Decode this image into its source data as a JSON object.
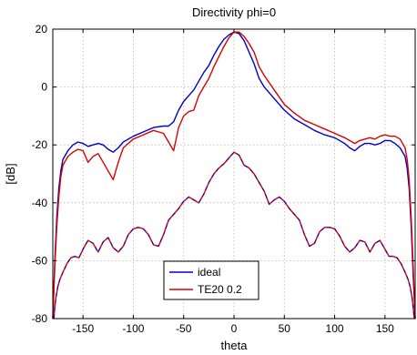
{
  "chart_data": {
    "type": "line",
    "title": "Directivity phi=0",
    "xlabel": "theta",
    "ylabel": "[dB]",
    "xlim": [
      -180,
      180
    ],
    "ylim": [
      -80,
      20
    ],
    "xticks": [
      -150,
      -100,
      -50,
      0,
      50,
      100,
      150
    ],
    "yticks": [
      -80,
      -60,
      -40,
      -20,
      0,
      20
    ],
    "grid": true,
    "legend": {
      "position": "bottom-center",
      "entries": [
        "ideal",
        "TE20 0.2"
      ]
    },
    "series": [
      {
        "name": "ideal",
        "color": "#0000cc",
        "style": "solid",
        "x": [
          -180,
          -178,
          -176,
          -174,
          -172,
          -170,
          -165,
          -160,
          -155,
          -150,
          -145,
          -140,
          -135,
          -130,
          -125,
          -120,
          -115,
          -110,
          -100,
          -90,
          -80,
          -70,
          -65,
          -60,
          -55,
          -50,
          -45,
          -40,
          -35,
          -30,
          -25,
          -20,
          -15,
          -10,
          -5,
          0,
          5,
          10,
          15,
          20,
          25,
          30,
          40,
          50,
          60,
          70,
          80,
          90,
          100,
          110,
          115,
          120,
          125,
          130,
          135,
          140,
          145,
          150,
          155,
          160,
          165,
          170,
          172,
          174,
          176,
          178,
          180
        ],
        "y": [
          -80,
          -60,
          -45,
          -35,
          -29,
          -25,
          -22,
          -20,
          -19,
          -19.5,
          -20.5,
          -20,
          -19.5,
          -20,
          -21.5,
          -22.5,
          -21,
          -19,
          -17,
          -15.5,
          -14,
          -13.5,
          -13.5,
          -12,
          -8,
          -5,
          -3,
          -1,
          2,
          5,
          7.5,
          11,
          14,
          16.5,
          18,
          19,
          18.5,
          16,
          12,
          8,
          3,
          0,
          -4,
          -8,
          -11,
          -13,
          -15,
          -16.5,
          -17.5,
          -19.5,
          -21,
          -22,
          -20.5,
          -19.5,
          -19.5,
          -20,
          -19.5,
          -18.5,
          -18.5,
          -19.5,
          -21,
          -24,
          -28,
          -35,
          -48,
          -65,
          -80
        ]
      },
      {
        "name": "TE20 0.2",
        "color": "#dd0000",
        "style": "solid",
        "x": [
          -180,
          -178,
          -176,
          -174,
          -172,
          -170,
          -165,
          -160,
          -155,
          -150,
          -145,
          -140,
          -135,
          -130,
          -125,
          -120,
          -115,
          -110,
          -100,
          -90,
          -80,
          -70,
          -65,
          -60,
          -55,
          -50,
          -45,
          -40,
          -35,
          -30,
          -25,
          -20,
          -15,
          -10,
          -5,
          0,
          5,
          10,
          15,
          20,
          25,
          30,
          40,
          50,
          60,
          70,
          80,
          90,
          100,
          110,
          115,
          120,
          125,
          130,
          135,
          140,
          145,
          150,
          155,
          160,
          165,
          170,
          172,
          174,
          176,
          178,
          180
        ],
        "y": [
          -80,
          -62,
          -48,
          -38,
          -31,
          -27,
          -24,
          -22.5,
          -21.5,
          -22,
          -26,
          -24,
          -23,
          -26,
          -29,
          -32,
          -26,
          -21,
          -18,
          -16.5,
          -15,
          -16,
          -19,
          -22,
          -14,
          -10,
          -8.5,
          -8,
          -3,
          0,
          3,
          7,
          10.5,
          14,
          17,
          19,
          19,
          17.5,
          15,
          12,
          7,
          4,
          -1,
          -6,
          -9,
          -11.5,
          -13,
          -14.5,
          -16,
          -17.5,
          -18.5,
          -19.5,
          -18.5,
          -18,
          -17.5,
          -18,
          -17,
          -16.5,
          -17,
          -17,
          -18,
          -21,
          -25,
          -32,
          -45,
          -62,
          -80
        ]
      },
      {
        "name": "",
        "color": "#0000cc",
        "style": "dashed",
        "x": [
          -179,
          -178,
          -177,
          -176,
          -175,
          -173,
          -170,
          -166,
          -162,
          -158,
          -154,
          -150,
          -145,
          -140,
          -135,
          -130,
          -125,
          -120,
          -115,
          -110,
          -105,
          -100,
          -95,
          -90,
          -85,
          -80,
          -75,
          -70,
          -65,
          -60,
          -55,
          -50,
          -45,
          -40,
          -35,
          -30,
          -25,
          -20,
          -15,
          -10,
          -5,
          0,
          5,
          10,
          15,
          20,
          25,
          30,
          35,
          40,
          45,
          50,
          55,
          60,
          65,
          70,
          75,
          80,
          85,
          90,
          95,
          100,
          105,
          110,
          115,
          120,
          125,
          130,
          135,
          140,
          145,
          150,
          154,
          158,
          162,
          166,
          170,
          173,
          175,
          176,
          177,
          178,
          179
        ],
        "y": [
          -80,
          -76,
          -73,
          -71,
          -69,
          -66.5,
          -64,
          -61,
          -59,
          -58.5,
          -59,
          -56,
          -53,
          -54,
          -57,
          -53.5,
          -52,
          -55.5,
          -57,
          -55,
          -51,
          -49,
          -48.5,
          -49,
          -51,
          -54.5,
          -55,
          -51,
          -46,
          -44,
          -42,
          -39.5,
          -38,
          -39,
          -40,
          -37,
          -33,
          -30,
          -28,
          -26.5,
          -24.5,
          -22.5,
          -23.5,
          -27,
          -28,
          -30,
          -33,
          -36,
          -40.5,
          -39,
          -38,
          -39.5,
          -42,
          -44,
          -46,
          -51,
          -55,
          -54,
          -50,
          -48.5,
          -48.5,
          -49,
          -51.5,
          -55,
          -57,
          -55.5,
          -53,
          -53.5,
          -57,
          -54,
          -53,
          -56,
          -58.5,
          -58.5,
          -59,
          -61,
          -64,
          -66.5,
          -69,
          -71,
          -73,
          -76,
          -80
        ]
      },
      {
        "name": "",
        "color": "#dd0000",
        "style": "dashed",
        "x": [
          -179,
          -178,
          -177,
          -176,
          -175,
          -173,
          -170,
          -166,
          -162,
          -158,
          -154,
          -150,
          -145,
          -140,
          -135,
          -130,
          -125,
          -120,
          -115,
          -110,
          -105,
          -100,
          -95,
          -90,
          -85,
          -80,
          -75,
          -70,
          -65,
          -60,
          -55,
          -50,
          -45,
          -40,
          -35,
          -30,
          -25,
          -20,
          -15,
          -10,
          -5,
          0,
          5,
          10,
          15,
          20,
          25,
          30,
          35,
          40,
          45,
          50,
          55,
          60,
          65,
          70,
          75,
          80,
          85,
          90,
          95,
          100,
          105,
          110,
          115,
          120,
          125,
          130,
          135,
          140,
          145,
          150,
          154,
          158,
          162,
          166,
          170,
          173,
          175,
          176,
          177,
          178,
          179
        ],
        "y": [
          -80,
          -76,
          -73,
          -71,
          -69,
          -66.5,
          -64,
          -61,
          -59,
          -58.5,
          -59,
          -56,
          -53,
          -54,
          -57,
          -53.5,
          -52,
          -55.5,
          -57,
          -55,
          -51,
          -49,
          -48.5,
          -49,
          -51,
          -54.5,
          -55,
          -51,
          -46,
          -44,
          -42,
          -39.5,
          -38,
          -39,
          -40,
          -37,
          -33,
          -30,
          -28,
          -26.5,
          -24.5,
          -22.5,
          -23.5,
          -27,
          -28,
          -30,
          -33,
          -36,
          -40.5,
          -39,
          -38,
          -39.5,
          -42,
          -44,
          -46,
          -51,
          -55,
          -54,
          -50,
          -48.5,
          -48.5,
          -49,
          -51.5,
          -55,
          -57,
          -55.5,
          -53,
          -53.5,
          -57,
          -54,
          -53,
          -56,
          -58.5,
          -58.5,
          -59,
          -61,
          -64,
          -66.5,
          -69,
          -71,
          -73,
          -76,
          -80
        ]
      }
    ]
  }
}
